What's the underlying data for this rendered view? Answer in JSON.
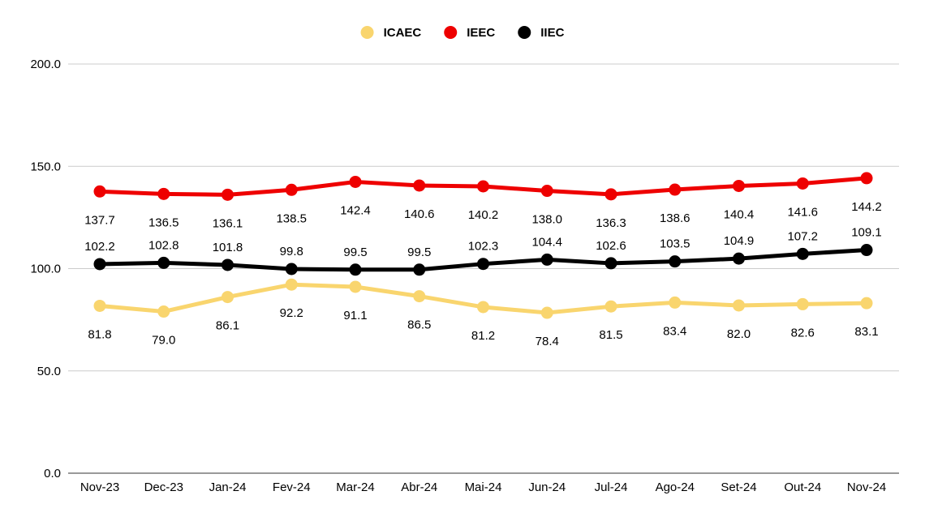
{
  "chart_data": {
    "type": "line",
    "title": "",
    "xlabel": "",
    "ylabel": "",
    "ylim": [
      0,
      200
    ],
    "yticks": [
      "0.0",
      "50.0",
      "100.0",
      "150.0",
      "200.0"
    ],
    "grid": true,
    "legend_position": "top-center",
    "categories": [
      "Nov-23",
      "Dec-23",
      "Jan-24",
      "Fev-24",
      "Mar-24",
      "Abr-24",
      "Mai-24",
      "Jun-24",
      "Jul-24",
      "Ago-24",
      "Set-24",
      "Out-24",
      "Nov-24"
    ],
    "series": [
      {
        "name": "ICAEC",
        "color": "#f9d56e",
        "values": [
          81.8,
          79.0,
          86.1,
          92.2,
          91.1,
          86.5,
          81.2,
          78.4,
          81.5,
          83.4,
          82.0,
          82.6,
          83.1
        ],
        "labels": [
          "81.8",
          "79.0",
          "86.1",
          "92.2",
          "91.1",
          "86.5",
          "81.2",
          "78.4",
          "81.5",
          "83.4",
          "82.0",
          "82.6",
          "83.1"
        ],
        "label_position": "below"
      },
      {
        "name": "IEEC",
        "color": "#ee0000",
        "values": [
          137.7,
          136.5,
          136.1,
          138.5,
          142.4,
          140.6,
          140.2,
          138.0,
          136.3,
          138.6,
          140.4,
          141.6,
          144.2
        ],
        "labels": [
          "137.7",
          "136.5",
          "136.1",
          "138.5",
          "142.4",
          "140.6",
          "140.2",
          "138.0",
          "136.3",
          "138.6",
          "140.4",
          "141.6",
          "144.2"
        ],
        "label_position": "below"
      },
      {
        "name": "IIEC",
        "color": "#000000",
        "values": [
          102.2,
          102.8,
          101.8,
          99.8,
          99.5,
          99.5,
          102.3,
          104.4,
          102.6,
          103.5,
          104.9,
          107.2,
          109.1
        ],
        "labels": [
          "102.2",
          "102.8",
          "101.8",
          "99.8",
          "99.5",
          "99.5",
          "102.3",
          "104.4",
          "102.6",
          "103.5",
          "104.9",
          "107.2",
          "109.1"
        ],
        "label_position": "above"
      }
    ]
  }
}
